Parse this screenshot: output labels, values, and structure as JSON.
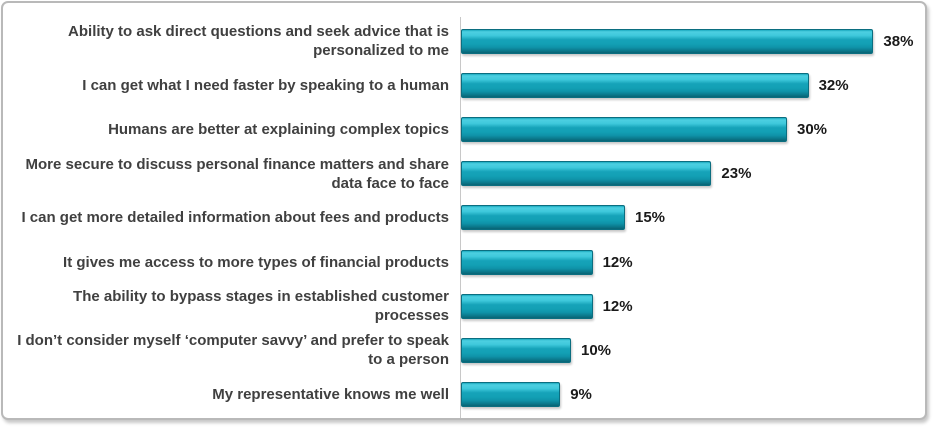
{
  "chart_data": {
    "type": "bar",
    "orientation": "horizontal",
    "title": "",
    "xlabel": "",
    "ylabel": "",
    "xlim": [
      0,
      40
    ],
    "grid": false,
    "legend": false,
    "categories": [
      "Ability to ask direct questions and seek advice that is personalized to me",
      "I can get what I need faster by speaking to a human",
      "Humans are better at explaining complex topics",
      "More secure to discuss personal finance matters and share data face to face",
      "I can get more detailed information about fees and products",
      "It gives me access to more types of financial products",
      "The ability to bypass stages in established customer processes",
      "I don’t consider myself ‘computer savvy’ and prefer to speak to a person",
      "My representative knows me well"
    ],
    "values": [
      38,
      32,
      30,
      23,
      15,
      12,
      12,
      10,
      9
    ],
    "value_labels": [
      "38%",
      "32%",
      "30%",
      "23%",
      "15%",
      "12%",
      "12%",
      "10%",
      "9%"
    ],
    "colors": {
      "bar_fill": "#13a0b5",
      "bar_highlight": "#4ccfe1",
      "bar_shadow_edge": "#096474",
      "bar_border": "#0b6e80",
      "category_label": "#404040",
      "value_label": "#1a1a1a",
      "axis_line": "#c8c8c8",
      "frame_border": "#b9b9b9",
      "background": "#ffffff"
    }
  }
}
